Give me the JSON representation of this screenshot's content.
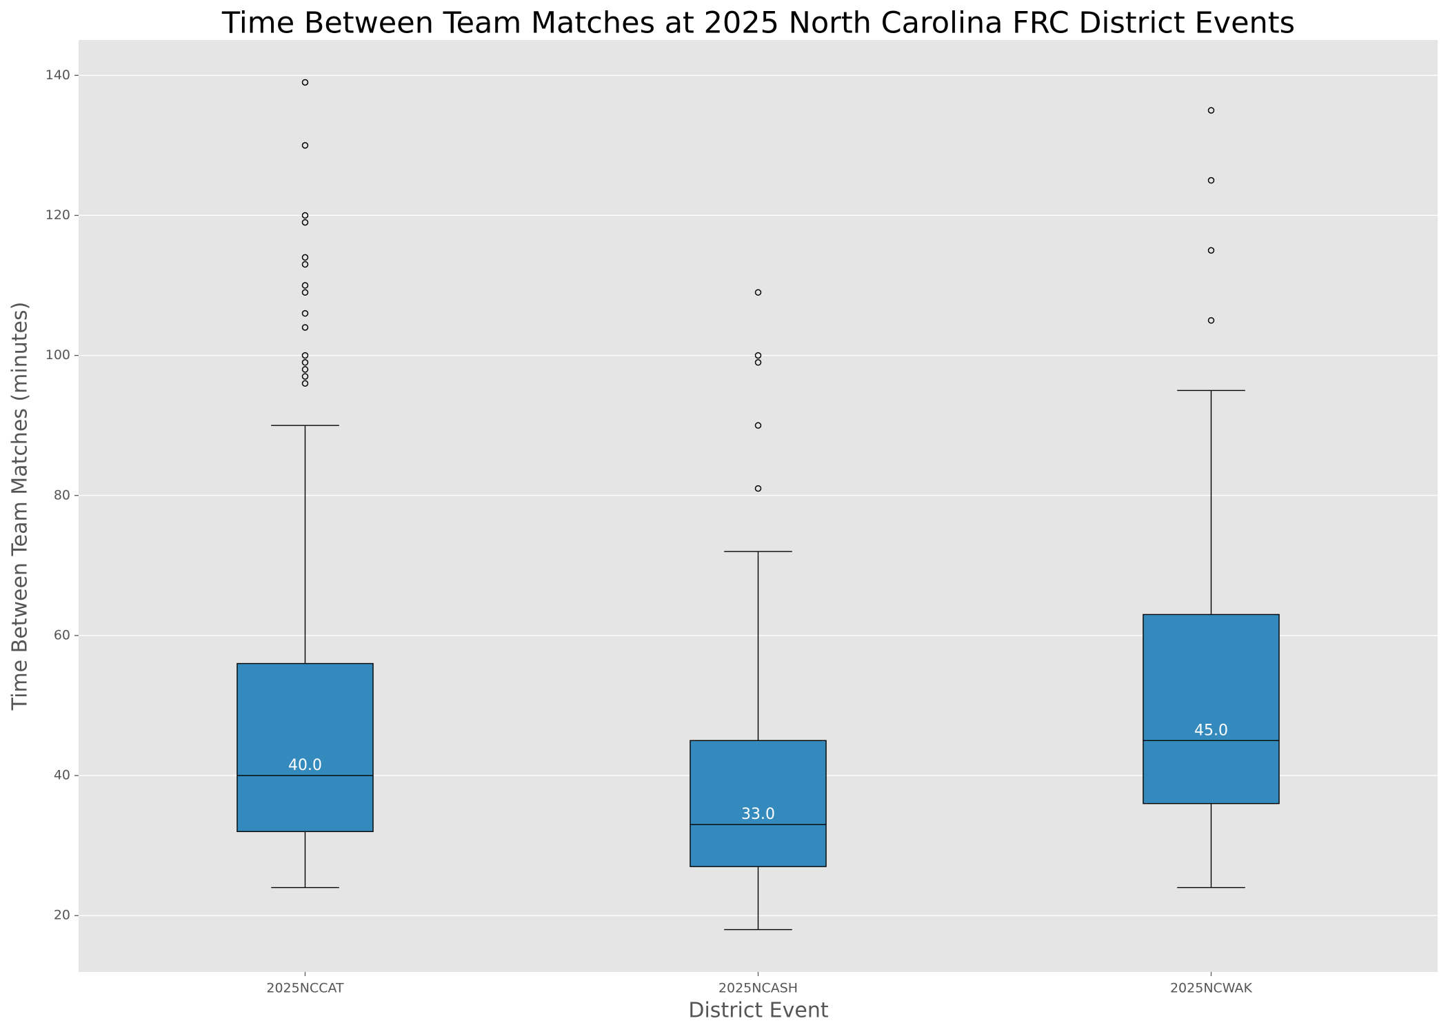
{
  "chart_data": {
    "type": "box",
    "title": "Time Between Team Matches at 2025 North Carolina FRC District Events",
    "x_label": "District Event",
    "y_label": "Time Between Team Matches (minutes)",
    "categories": [
      "2025NCCAT",
      "2025NCASH",
      "2025NCWAK"
    ],
    "boxes": [
      {
        "whislo": 24,
        "q1": 32,
        "q3": 56,
        "whishi": 90,
        "fliers": [
          139,
          130,
          120,
          119,
          114,
          113,
          110,
          109,
          106,
          104,
          100,
          99,
          98,
          97,
          96
        ]
      },
      {
        "whislo": 18,
        "q1": 27,
        "q3": 45,
        "whishi": 72,
        "fliers": [
          109,
          100,
          99,
          90,
          81
        ]
      },
      {
        "whislo": 24,
        "q1": 36,
        "q3": 63,
        "whishi": 95,
        "fliers": [
          135,
          125,
          115,
          105
        ]
      }
    ],
    "values": [
      40,
      33,
      45
    ],
    "value_labels": [
      "40.0",
      "33.0",
      "45.0"
    ],
    "color": "#348abd",
    "ylim": [
      11.95,
      145.05
    ],
    "yticks": [
      20,
      40,
      60,
      80,
      100,
      120,
      140
    ],
    "grid": true
  }
}
